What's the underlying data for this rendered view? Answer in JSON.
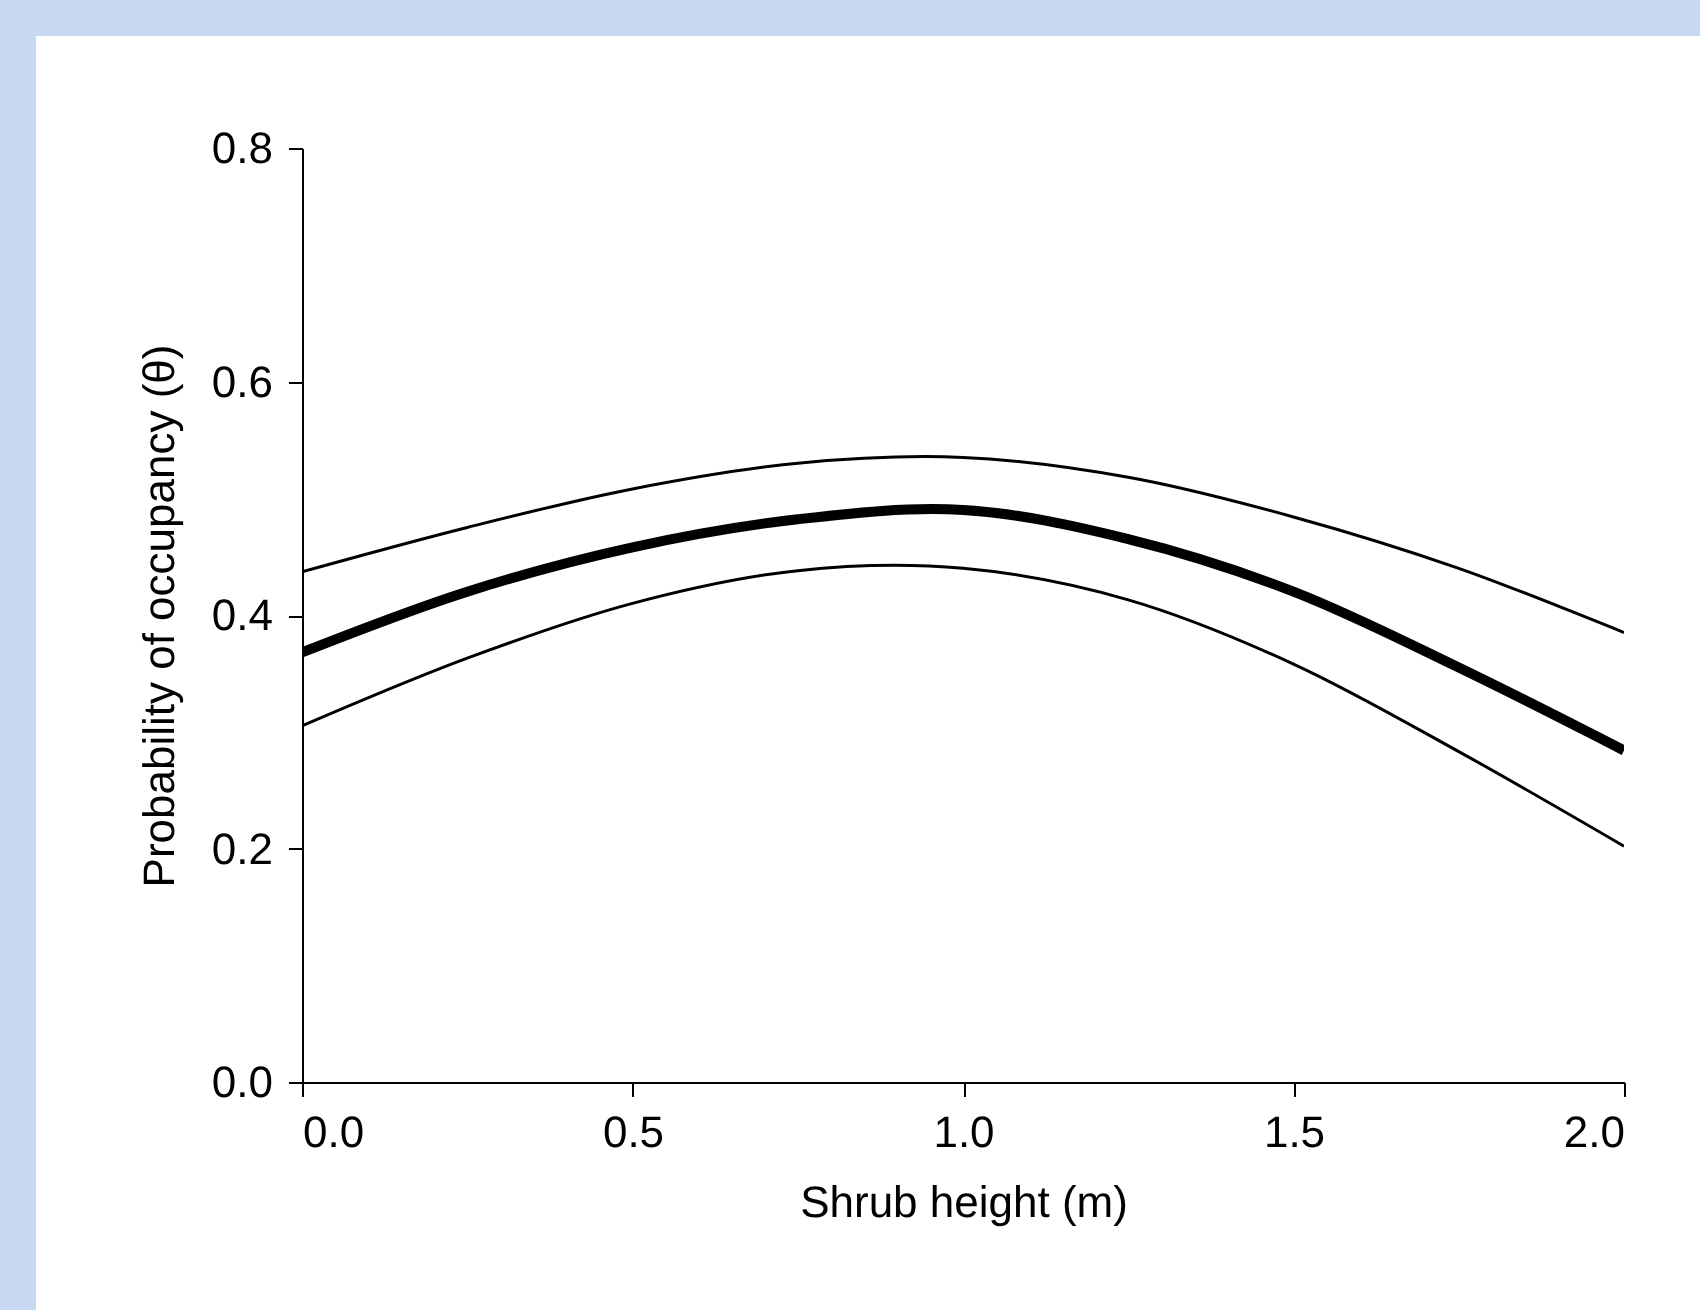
{
  "chart_data": {
    "type": "line",
    "xlabel": "Shrub height (m)",
    "ylabel": "Probability of occupancy (θ)",
    "x": [
      0,
      0.25,
      0.5,
      0.75,
      1.0,
      1.25,
      1.5,
      1.75,
      2.0
    ],
    "series": [
      {
        "color": "#000000",
        "values": [
          0.437,
          0.475,
          0.508,
          0.53,
          0.535,
          0.518,
          0.484,
          0.44,
          0.385
        ]
      },
      {
        "color": "#000000",
        "values": [
          0.368,
          0.42,
          0.458,
          0.482,
          0.49,
          0.465,
          0.42,
          0.355,
          0.284
        ]
      },
      {
        "color": "#000000",
        "values": [
          0.305,
          0.363,
          0.41,
          0.438,
          0.44,
          0.413,
          0.358,
          0.283,
          0.202
        ]
      }
    ],
    "xlim": [
      0,
      2.0
    ],
    "xticks": [
      {
        "value": 0,
        "label": "0.0"
      },
      0.5,
      {
        "value": 1.0,
        "label": "1.0"
      },
      1.5,
      {
        "value": 2.0,
        "label": "2.0"
      }
    ],
    "ylim": [
      0,
      0.8
    ],
    "yticks": [
      {
        "value": 0,
        "label": "0.0"
      },
      0.2,
      0.4,
      0.6,
      0.8
    ],
    "grid": false,
    "marker": "none",
    "line_style": "solid"
  }
}
